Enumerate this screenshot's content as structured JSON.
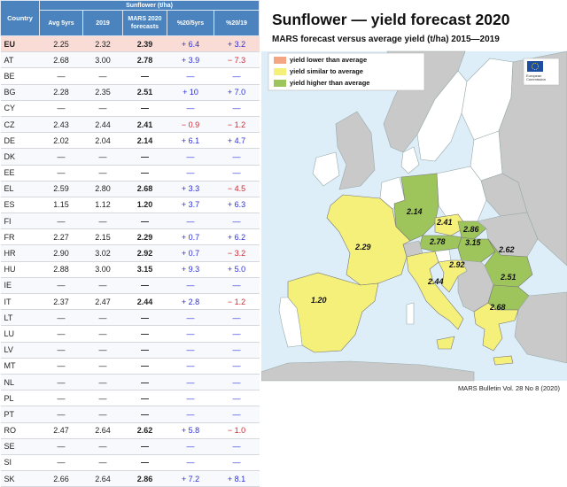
{
  "table": {
    "group_header": "Sunflower (t/ha)",
    "headers": {
      "country": "Country",
      "avg": "Avg 5yrs",
      "y2019": "2019",
      "forecast": "MARS 2020 forecasts",
      "pct5": "%20/5yrs",
      "pct19": "%20/19"
    },
    "rows": [
      {
        "c": "EU",
        "a": "2.25",
        "b": "2.32",
        "f": "2.39",
        "p": "+ 6.4",
        "q": "+ 3.2"
      },
      {
        "c": "AT",
        "a": "2.68",
        "b": "3.00",
        "f": "2.78",
        "p": "+ 3.9",
        "q": "− 7.3"
      },
      {
        "c": "BE",
        "a": "—",
        "b": "—",
        "f": "—",
        "p": "—",
        "q": "—"
      },
      {
        "c": "BG",
        "a": "2.28",
        "b": "2.35",
        "f": "2.51",
        "p": "+ 10",
        "q": "+ 7.0"
      },
      {
        "c": "CY",
        "a": "—",
        "b": "—",
        "f": "—",
        "p": "—",
        "q": "—"
      },
      {
        "c": "CZ",
        "a": "2.43",
        "b": "2.44",
        "f": "2.41",
        "p": "− 0.9",
        "q": "− 1.2"
      },
      {
        "c": "DE",
        "a": "2.02",
        "b": "2.04",
        "f": "2.14",
        "p": "+ 6.1",
        "q": "+ 4.7"
      },
      {
        "c": "DK",
        "a": "—",
        "b": "—",
        "f": "—",
        "p": "—",
        "q": "—"
      },
      {
        "c": "EE",
        "a": "—",
        "b": "—",
        "f": "—",
        "p": "—",
        "q": "—"
      },
      {
        "c": "EL",
        "a": "2.59",
        "b": "2.80",
        "f": "2.68",
        "p": "+ 3.3",
        "q": "− 4.5"
      },
      {
        "c": "ES",
        "a": "1.15",
        "b": "1.12",
        "f": "1.20",
        "p": "+ 3.7",
        "q": "+ 6.3"
      },
      {
        "c": "FI",
        "a": "—",
        "b": "—",
        "f": "—",
        "p": "—",
        "q": "—"
      },
      {
        "c": "FR",
        "a": "2.27",
        "b": "2.15",
        "f": "2.29",
        "p": "+ 0.7",
        "q": "+ 6.2"
      },
      {
        "c": "HR",
        "a": "2.90",
        "b": "3.02",
        "f": "2.92",
        "p": "+ 0.7",
        "q": "− 3.2"
      },
      {
        "c": "HU",
        "a": "2.88",
        "b": "3.00",
        "f": "3.15",
        "p": "+ 9.3",
        "q": "+ 5.0"
      },
      {
        "c": "IE",
        "a": "—",
        "b": "—",
        "f": "—",
        "p": "—",
        "q": "—"
      },
      {
        "c": "IT",
        "a": "2.37",
        "b": "2.47",
        "f": "2.44",
        "p": "+ 2.8",
        "q": "− 1.2"
      },
      {
        "c": "LT",
        "a": "—",
        "b": "—",
        "f": "—",
        "p": "—",
        "q": "—"
      },
      {
        "c": "LU",
        "a": "—",
        "b": "—",
        "f": "—",
        "p": "—",
        "q": "—"
      },
      {
        "c": "LV",
        "a": "—",
        "b": "—",
        "f": "—",
        "p": "—",
        "q": "—"
      },
      {
        "c": "MT",
        "a": "—",
        "b": "—",
        "f": "—",
        "p": "—",
        "q": "—"
      },
      {
        "c": "NL",
        "a": "—",
        "b": "—",
        "f": "—",
        "p": "—",
        "q": "—"
      },
      {
        "c": "PL",
        "a": "—",
        "b": "—",
        "f": "—",
        "p": "—",
        "q": "—"
      },
      {
        "c": "PT",
        "a": "—",
        "b": "—",
        "f": "—",
        "p": "—",
        "q": "—"
      },
      {
        "c": "RO",
        "a": "2.47",
        "b": "2.64",
        "f": "2.62",
        "p": "+ 5.8",
        "q": "− 1.0"
      },
      {
        "c": "SE",
        "a": "—",
        "b": "—",
        "f": "—",
        "p": "—",
        "q": "—"
      },
      {
        "c": "SI",
        "a": "—",
        "b": "—",
        "f": "—",
        "p": "—",
        "q": "—"
      },
      {
        "c": "SK",
        "a": "2.66",
        "b": "2.64",
        "f": "2.86",
        "p": "+ 7.2",
        "q": "+ 8.1"
      }
    ]
  },
  "map": {
    "title": "Sunflower — yield forecast 2020",
    "subtitle": "MARS forecast versus average yield (t/ha) 2015—2019",
    "legend": [
      {
        "label": "yield lower than average",
        "color": "#f4a582"
      },
      {
        "label": "yield similar to average",
        "color": "#f5f07a"
      },
      {
        "label": "yield higher than average",
        "color": "#9ec45c"
      }
    ],
    "labels": {
      "es": "1.20",
      "fr": "2.29",
      "it": "2.44",
      "de": "2.14",
      "cz": "2.41",
      "at": "2.78",
      "sk": "2.86",
      "hu": "3.15",
      "hr": "2.92",
      "ro": "2.62",
      "bg": "2.51",
      "el": "2.68"
    },
    "colors": {
      "sea": "#ddeef8",
      "nonEU": "#c9c9c9",
      "similar": "#f5f07a",
      "higher": "#9ec45c",
      "plain": "#ffffff"
    },
    "footer": "MARS Bulletin Vol. 28 No 8 (2020)",
    "logo_text": "European Commission"
  }
}
